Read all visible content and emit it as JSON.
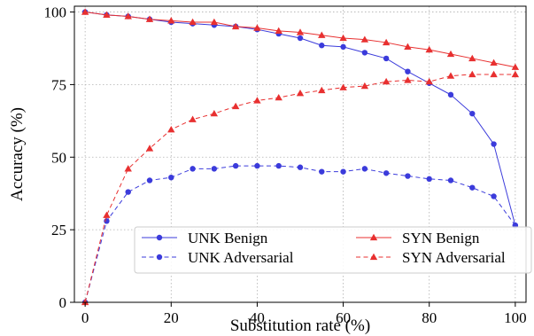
{
  "chart_data": {
    "type": "line",
    "xlabel": "Substitution rate (%)",
    "ylabel": "Accuracy (%)",
    "xlim": [
      -2.5,
      102.5
    ],
    "ylim": [
      0,
      102
    ],
    "xticks": [
      0,
      20,
      40,
      60,
      80,
      100
    ],
    "yticks": [
      0,
      25,
      50,
      75,
      100
    ],
    "grid": true,
    "legend_position": "bottom-right",
    "series": [
      {
        "name": "UNK Benign",
        "color": "#3b3bdb",
        "style": "solid",
        "marker": "circle",
        "x": [
          0,
          5,
          10,
          15,
          20,
          25,
          30,
          35,
          40,
          45,
          50,
          55,
          60,
          65,
          70,
          75,
          80,
          85,
          90,
          95,
          100
        ],
        "y": [
          100,
          99,
          98.5,
          97.5,
          96.5,
          96,
          95.5,
          95,
          94,
          92.5,
          91,
          88.5,
          88,
          86,
          84,
          79.5,
          75.5,
          71.5,
          65,
          54.5,
          26.5
        ]
      },
      {
        "name": "UNK Adversarial",
        "color": "#3b3bdb",
        "style": "dashed",
        "marker": "circle",
        "x": [
          0,
          5,
          10,
          15,
          20,
          25,
          30,
          35,
          40,
          45,
          50,
          55,
          60,
          65,
          70,
          75,
          80,
          85,
          90,
          95,
          100
        ],
        "y": [
          0,
          28,
          38,
          42,
          43,
          46,
          46,
          47,
          47,
          47,
          46.5,
          45,
          45,
          46,
          44.5,
          43.5,
          42.5,
          42,
          39.5,
          36.5,
          26.5
        ]
      },
      {
        "name": "SYN Benign",
        "color": "#e83030",
        "style": "solid",
        "marker": "triangle",
        "x": [
          0,
          5,
          10,
          15,
          20,
          25,
          30,
          35,
          40,
          45,
          50,
          55,
          60,
          65,
          70,
          75,
          80,
          85,
          90,
          95,
          100
        ],
        "y": [
          100,
          99,
          98.5,
          97.5,
          97,
          96.5,
          96.5,
          95,
          94.5,
          93.5,
          93,
          92,
          91,
          90.5,
          89.5,
          88,
          87,
          85.5,
          84,
          82.5,
          81
        ]
      },
      {
        "name": "SYN Adversarial",
        "color": "#e83030",
        "style": "dashed",
        "marker": "triangle",
        "x": [
          0,
          5,
          10,
          15,
          20,
          25,
          30,
          35,
          40,
          45,
          50,
          55,
          60,
          65,
          70,
          75,
          80,
          85,
          90,
          95,
          100
        ],
        "y": [
          0,
          30,
          46,
          53,
          59.5,
          63,
          65,
          67.5,
          69.5,
          70.5,
          72,
          73,
          74,
          74.5,
          76,
          76.5,
          76,
          78,
          78.5,
          78.5,
          78.5
        ]
      }
    ]
  }
}
